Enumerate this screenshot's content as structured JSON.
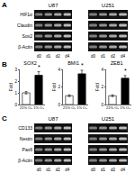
{
  "panels": [
    {
      "label": "A",
      "cell_lines": [
        "U87",
        "U251"
      ],
      "rows": [
        "HIF1α",
        "Claudin",
        "Sox2",
        "β-Actin"
      ],
      "lanes": [
        "d0",
        "d1",
        "d2",
        "d4"
      ]
    },
    {
      "label": "B"
    },
    {
      "label": "C",
      "cell_lines": [
        "U87",
        "U251"
      ],
      "rows": [
        "CD133",
        "Nestin",
        "Pax6",
        "β-Actin"
      ],
      "lanes": [
        "d0",
        "d1",
        "d2",
        "d4"
      ]
    }
  ],
  "chart_data": [
    {
      "type": "bar",
      "title": "SOX2",
      "y_label": "Fold",
      "categories": [
        "21% O₂",
        "1% O₂"
      ],
      "values": [
        1,
        2.5
      ],
      "errors": [
        0.1,
        0.3
      ],
      "colors": [
        "#ffffff",
        "#000000"
      ],
      "ylim": [
        0,
        3
      ],
      "yticks": [
        0,
        1,
        2,
        3
      ],
      "annotations": [
        {
          "category": "1% O₂",
          "text": "*"
        }
      ]
    },
    {
      "type": "bar",
      "title": "BMI1",
      "y_label": "Fold",
      "categories": [
        "21% O₂",
        "1% O₂"
      ],
      "values": [
        1,
        3.5
      ],
      "errors": [
        0.1,
        0.4
      ],
      "colors": [
        "#ffffff",
        "#000000"
      ],
      "ylim": [
        0,
        4
      ],
      "yticks": [
        0,
        2,
        4
      ],
      "annotations": [
        {
          "category": "1% O₂",
          "text": "*"
        }
      ]
    },
    {
      "type": "bar",
      "title": "ZEB1",
      "y_label": "Fold",
      "categories": [
        "21% O₂",
        "1% O₂"
      ],
      "values": [
        1,
        3
      ],
      "errors": [
        0.1,
        0.3
      ],
      "colors": [
        "#ffffff",
        "#000000"
      ],
      "ylim": [
        0,
        4
      ],
      "yticks": [
        0,
        2,
        4
      ],
      "annotations": [
        {
          "category": "1% O₂",
          "text": "*"
        }
      ]
    }
  ]
}
